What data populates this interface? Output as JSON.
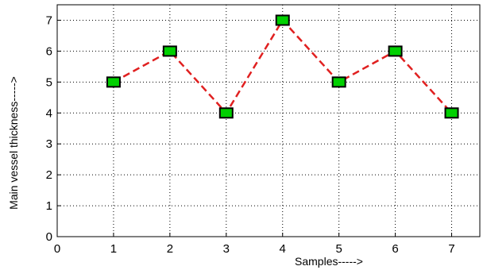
{
  "chart_data": {
    "type": "line",
    "title": "",
    "xlabel": "Samples----->",
    "ylabel": "Main vessel thickness----->",
    "x": [
      1,
      2,
      3,
      4,
      5,
      6,
      7
    ],
    "series": [
      {
        "values": [
          5,
          6,
          4,
          7,
          5,
          6,
          4
        ]
      }
    ],
    "xlim": [
      0,
      7.5
    ],
    "ylim": [
      0,
      7.5
    ],
    "x_ticks": [
      0,
      1,
      2,
      3,
      4,
      5,
      6,
      7
    ],
    "y_ticks": [
      0,
      1,
      2,
      3,
      4,
      5,
      6,
      7
    ],
    "grid": true,
    "line_style": "dashed",
    "line_color": "#e02020",
    "marker": "square",
    "marker_fill": "#00d000",
    "marker_edge": "#000000"
  }
}
